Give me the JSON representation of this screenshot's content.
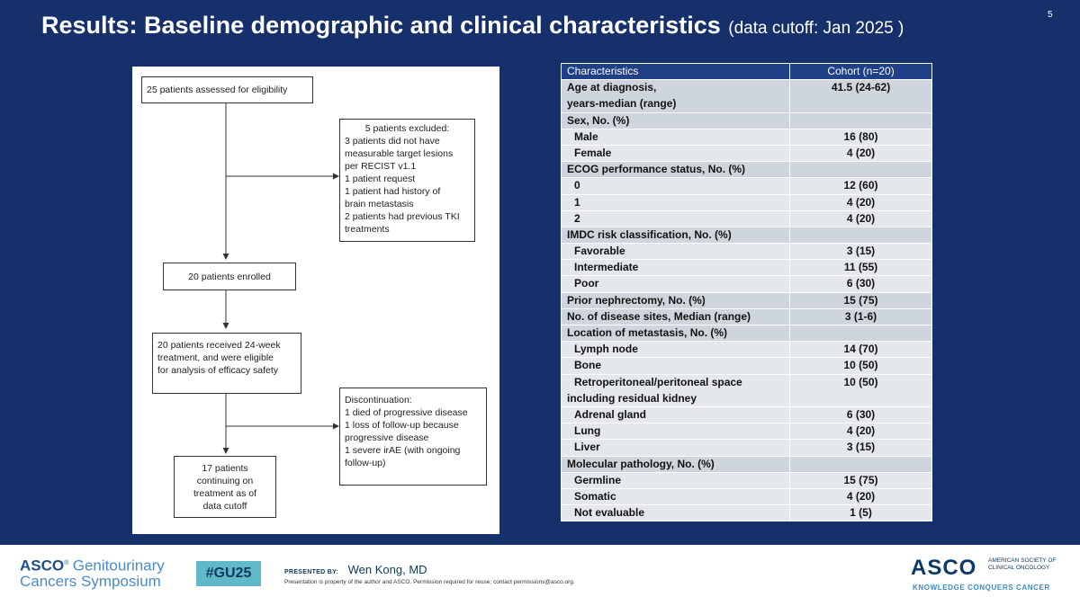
{
  "slide": {
    "title_main": "Results: Baseline demographic and clinical characteristics",
    "title_sub": "(data cutoff: Jan 2025 )",
    "page_number": "5"
  },
  "flowchart": {
    "assessed": "25 patients assessed for eligibility",
    "excluded_lines": [
      "5 patients excluded:",
      "3 patients did not have",
      "measurable target lesions",
      "per RECIST v1.1",
      "1 patient request",
      "1 patient had history of",
      "brain metastasis",
      "2 patients had previous TKI",
      "treatments"
    ],
    "enrolled": "20 patients enrolled",
    "treatment_lines": [
      "20 patients received 24-week",
      "treatment, and were eligible",
      "for analysis of efficacy safety"
    ],
    "discontinuation_lines": [
      "Discontinuation:",
      "1 died of progressive disease",
      "1 loss of follow-up because",
      "progressive disease",
      "1 severe irAE (with ongoing",
      "follow-up)"
    ],
    "continuing_lines": [
      "17 patients",
      "continuing on",
      "treatment as of",
      "data cutoff"
    ]
  },
  "table": {
    "headers": [
      "Characteristics",
      "Cohort (n=20)"
    ],
    "rows": [
      {
        "label": "Age at diagnosis,",
        "label2": "years-median (range)",
        "value": "41.5 (24-62)"
      },
      {
        "label": "Sex, No. (%)",
        "value": ""
      },
      {
        "label": "Male",
        "value": "16 (80)"
      },
      {
        "label": "Female",
        "value": "4 (20)"
      },
      {
        "label": "ECOG performance status, No. (%)",
        "value": ""
      },
      {
        "label": "0",
        "value": "12 (60)"
      },
      {
        "label": "1",
        "value": "4 (20)"
      },
      {
        "label": "2",
        "value": "4 (20)"
      },
      {
        "label": "IMDC risk classification, No. (%)",
        "value": ""
      },
      {
        "label": "Favorable",
        "value": "3 (15)"
      },
      {
        "label": "Intermediate",
        "value": "11 (55)"
      },
      {
        "label": "Poor",
        "value": "6 (30)"
      },
      {
        "label": "Prior nephrectomy, No. (%)",
        "value": "15 (75)"
      },
      {
        "label": "No. of disease sites, Median (range)",
        "value": "3 (1-6)"
      },
      {
        "label": "Location of metastasis, No. (%)",
        "value": ""
      },
      {
        "label": "Lymph node",
        "value": "14 (70)"
      },
      {
        "label": "Bone",
        "value": "10 (50)"
      },
      {
        "label": "Retroperitoneal/peritoneal space",
        "label2": "including residual kidney",
        "value": "10 (50)"
      },
      {
        "label": "Adrenal gland",
        "value": "6 (30)"
      },
      {
        "label": "Lung",
        "value": "4 (20)"
      },
      {
        "label": "Liver",
        "value": "3 (15)"
      },
      {
        "label": "Molecular pathology, No. (%)",
        "value": ""
      },
      {
        "label": "Germline",
        "value": "15 (75)"
      },
      {
        "label": "Somatic",
        "value": "4 (20)"
      },
      {
        "label": "Not evaluable",
        "value": "1 (5)"
      }
    ]
  },
  "footer": {
    "asco_word": "ASCO",
    "gu_word": "Genitourinary",
    "symposium": "Cancers Symposium",
    "hashtag": "#GU25",
    "presented_by_label": "PRESENTED BY:",
    "presenter": "Wen Kong, MD",
    "disclaimer": "Presentation is property of the author and ASCO. Permission required for reuse; contact permissions@asco.org.",
    "logo_text": "ASCO",
    "society_line1": "AMERICAN SOCIETY OF",
    "society_line2": "CLINICAL ONCOLOGY",
    "tagline": "KNOWLEDGE CONQUERS CANCER"
  },
  "colors": {
    "slide_background": "#15306a",
    "table_header": "#1f3f86",
    "table_section_row": "#cfd5dc",
    "table_sub_row": "#e4e8ec",
    "hashtag_badge": "#5fb9c9"
  }
}
